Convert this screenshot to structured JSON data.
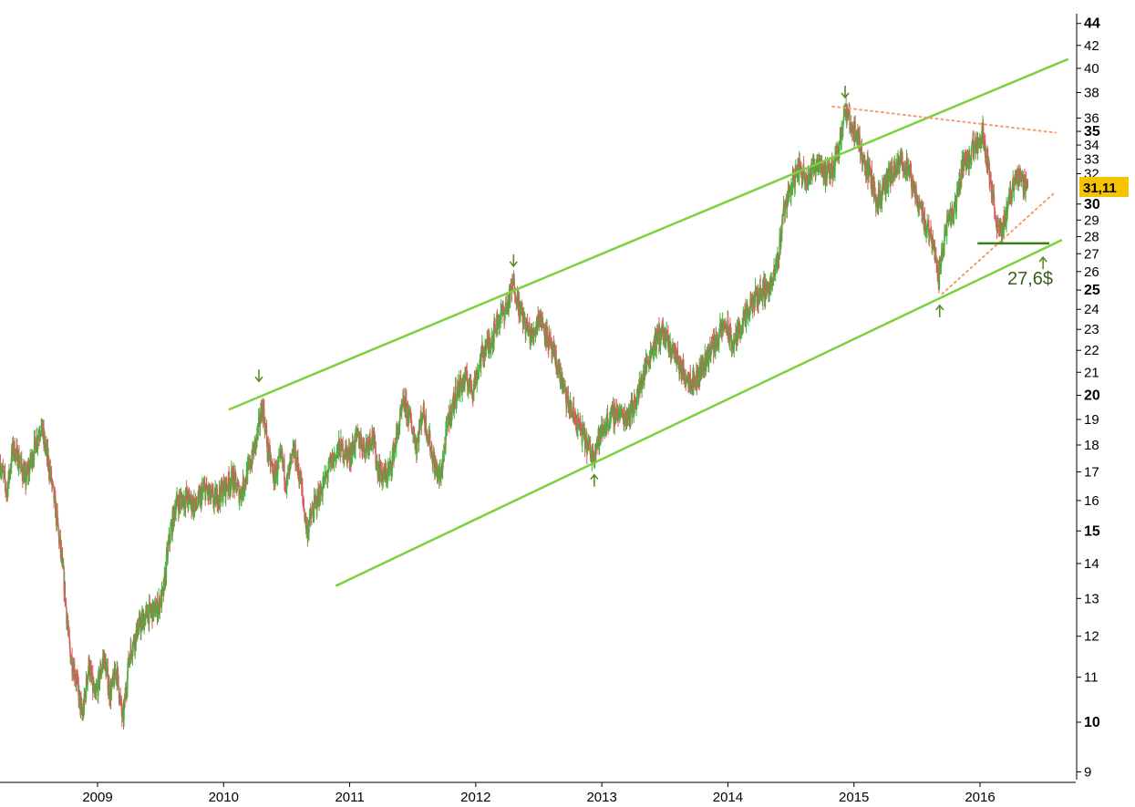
{
  "chart_data": {
    "type": "candlestick",
    "y_scale": "log",
    "ylim": [
      8.8,
      45
    ],
    "grid": false,
    "y_ticks": [
      {
        "value": 44,
        "label": "44",
        "major": true
      },
      {
        "value": 42,
        "label": "42",
        "major": false
      },
      {
        "value": 40,
        "label": "40",
        "major": false
      },
      {
        "value": 38,
        "label": "38",
        "major": false
      },
      {
        "value": 36,
        "label": "36",
        "major": false
      },
      {
        "value": 35,
        "label": "35",
        "major": true
      },
      {
        "value": 34,
        "label": "34",
        "major": false
      },
      {
        "value": 33,
        "label": "33",
        "major": false
      },
      {
        "value": 32,
        "label": "32",
        "major": false
      },
      {
        "value": 30,
        "label": "30",
        "major": true
      },
      {
        "value": 29,
        "label": "29",
        "major": false
      },
      {
        "value": 28,
        "label": "28",
        "major": false
      },
      {
        "value": 27,
        "label": "27",
        "major": false
      },
      {
        "value": 26,
        "label": "26",
        "major": false
      },
      {
        "value": 25,
        "label": "25",
        "major": true
      },
      {
        "value": 24,
        "label": "24",
        "major": false
      },
      {
        "value": 23,
        "label": "23",
        "major": false
      },
      {
        "value": 22,
        "label": "22",
        "major": false
      },
      {
        "value": 21,
        "label": "21",
        "major": false
      },
      {
        "value": 20,
        "label": "20",
        "major": true
      },
      {
        "value": 19,
        "label": "19",
        "major": false
      },
      {
        "value": 18,
        "label": "18",
        "major": false
      },
      {
        "value": 17,
        "label": "17",
        "major": false
      },
      {
        "value": 16,
        "label": "16",
        "major": false
      },
      {
        "value": 15,
        "label": "15",
        "major": true
      },
      {
        "value": 14,
        "label": "14",
        "major": false
      },
      {
        "value": 13,
        "label": "13",
        "major": false
      },
      {
        "value": 12,
        "label": "12",
        "major": false
      },
      {
        "value": 11,
        "label": "11",
        "major": false
      },
      {
        "value": 10,
        "label": "10",
        "major": true
      },
      {
        "value": 9,
        "label": "9",
        "major": false
      }
    ],
    "x_ticks": [
      {
        "value": 2009.0,
        "label": "2009"
      },
      {
        "value": 2010.0,
        "label": "2010"
      },
      {
        "value": 2011.0,
        "label": "2011"
      },
      {
        "value": 2012.0,
        "label": "2012"
      },
      {
        "value": 2013.0,
        "label": "2013"
      },
      {
        "value": 2014.0,
        "label": "2014"
      },
      {
        "value": 2015.0,
        "label": "2015"
      },
      {
        "value": 2016.0,
        "label": "2016"
      }
    ],
    "xlim": [
      2008.23,
      2017.02
    ],
    "last_price": {
      "value": 31.11,
      "label": "31,11"
    },
    "price_path": [
      [
        2008.23,
        17.3
      ],
      [
        2008.28,
        16.3
      ],
      [
        2008.33,
        17.9
      ],
      [
        2008.38,
        17.4
      ],
      [
        2008.43,
        16.7
      ],
      [
        2008.5,
        17.9
      ],
      [
        2008.55,
        18.8
      ],
      [
        2008.62,
        17.1
      ],
      [
        2008.68,
        15.3
      ],
      [
        2008.73,
        13.6
      ],
      [
        2008.78,
        11.6
      ],
      [
        2008.83,
        11.0
      ],
      [
        2008.88,
        10.1
      ],
      [
        2008.93,
        11.3
      ],
      [
        2008.98,
        10.5
      ],
      [
        2009.05,
        11.5
      ],
      [
        2009.1,
        10.6
      ],
      [
        2009.15,
        11.2
      ],
      [
        2009.2,
        10.0
      ],
      [
        2009.25,
        11.5
      ],
      [
        2009.32,
        12.2
      ],
      [
        2009.4,
        12.6
      ],
      [
        2009.47,
        12.7
      ],
      [
        2009.52,
        13.1
      ],
      [
        2009.56,
        14.5
      ],
      [
        2009.62,
        15.9
      ],
      [
        2009.7,
        16.1
      ],
      [
        2009.78,
        15.8
      ],
      [
        2009.85,
        16.4
      ],
      [
        2009.92,
        16.0
      ],
      [
        2010.0,
        16.4
      ],
      [
        2010.07,
        16.8
      ],
      [
        2010.13,
        16.2
      ],
      [
        2010.2,
        17.1
      ],
      [
        2010.26,
        18.2
      ],
      [
        2010.31,
        19.6
      ],
      [
        2010.35,
        17.8
      ],
      [
        2010.4,
        16.8
      ],
      [
        2010.46,
        17.5
      ],
      [
        2010.5,
        16.6
      ],
      [
        2010.56,
        17.8
      ],
      [
        2010.61,
        16.7
      ],
      [
        2010.66,
        15.0
      ],
      [
        2010.72,
        15.8
      ],
      [
        2010.78,
        16.4
      ],
      [
        2010.85,
        17.3
      ],
      [
        2010.92,
        17.9
      ],
      [
        2011.0,
        17.6
      ],
      [
        2011.06,
        18.3
      ],
      [
        2011.12,
        17.9
      ],
      [
        2011.18,
        18.4
      ],
      [
        2011.22,
        17.2
      ],
      [
        2011.27,
        16.8
      ],
      [
        2011.32,
        17.1
      ],
      [
        2011.38,
        18.5
      ],
      [
        2011.43,
        19.7
      ],
      [
        2011.48,
        19.0
      ],
      [
        2011.53,
        18.0
      ],
      [
        2011.58,
        19.4
      ],
      [
        2011.63,
        18.2
      ],
      [
        2011.68,
        17.1
      ],
      [
        2011.72,
        16.8
      ],
      [
        2011.78,
        18.9
      ],
      [
        2011.85,
        20.2
      ],
      [
        2011.92,
        20.7
      ],
      [
        2011.98,
        20.3
      ],
      [
        2012.05,
        21.8
      ],
      [
        2012.12,
        22.5
      ],
      [
        2012.18,
        23.5
      ],
      [
        2012.25,
        24.2
      ],
      [
        2012.3,
        25.4
      ],
      [
        2012.35,
        24.0
      ],
      [
        2012.4,
        23.1
      ],
      [
        2012.45,
        22.6
      ],
      [
        2012.5,
        23.7
      ],
      [
        2012.55,
        23.0
      ],
      [
        2012.6,
        22.0
      ],
      [
        2012.66,
        21.1
      ],
      [
        2012.72,
        19.8
      ],
      [
        2012.78,
        19.1
      ],
      [
        2012.85,
        18.4
      ],
      [
        2012.92,
        17.6
      ],
      [
        2012.98,
        18.3
      ],
      [
        2013.05,
        19.0
      ],
      [
        2013.12,
        19.3
      ],
      [
        2013.18,
        19.1
      ],
      [
        2013.25,
        19.5
      ],
      [
        2013.3,
        20.3
      ],
      [
        2013.35,
        21.3
      ],
      [
        2013.42,
        22.4
      ],
      [
        2013.48,
        22.9
      ],
      [
        2013.53,
        22.2
      ],
      [
        2013.58,
        21.9
      ],
      [
        2013.63,
        21.1
      ],
      [
        2013.68,
        20.8
      ],
      [
        2013.74,
        20.6
      ],
      [
        2013.8,
        21.3
      ],
      [
        2013.85,
        21.9
      ],
      [
        2013.92,
        22.6
      ],
      [
        2013.98,
        23.3
      ],
      [
        2014.04,
        22.2
      ],
      [
        2014.1,
        23.2
      ],
      [
        2014.15,
        23.6
      ],
      [
        2014.2,
        24.4
      ],
      [
        2014.26,
        24.9
      ],
      [
        2014.31,
        25.1
      ],
      [
        2014.35,
        25.3
      ],
      [
        2014.4,
        26.8
      ],
      [
        2014.44,
        29.6
      ],
      [
        2014.5,
        31.1
      ],
      [
        2014.56,
        32.4
      ],
      [
        2014.62,
        31.8
      ],
      [
        2014.67,
        32.2
      ],
      [
        2014.72,
        33.0
      ],
      [
        2014.78,
        31.8
      ],
      [
        2014.83,
        32.3
      ],
      [
        2014.88,
        34.0
      ],
      [
        2014.93,
        36.6
      ],
      [
        2014.98,
        35.4
      ],
      [
        2015.03,
        34.6
      ],
      [
        2015.08,
        32.8
      ],
      [
        2015.13,
        31.9
      ],
      [
        2015.18,
        30.2
      ],
      [
        2015.23,
        30.8
      ],
      [
        2015.28,
        31.8
      ],
      [
        2015.33,
        32.1
      ],
      [
        2015.38,
        32.9
      ],
      [
        2015.43,
        32.3
      ],
      [
        2015.47,
        30.9
      ],
      [
        2015.52,
        30.1
      ],
      [
        2015.56,
        28.9
      ],
      [
        2015.6,
        28.2
      ],
      [
        2015.64,
        27.6
      ],
      [
        2015.67,
        25.4
      ],
      [
        2015.7,
        27.4
      ],
      [
        2015.74,
        28.8
      ],
      [
        2015.8,
        29.6
      ],
      [
        2015.86,
        32.6
      ],
      [
        2015.92,
        33.2
      ],
      [
        2015.97,
        34.2
      ],
      [
        2016.02,
        34.9
      ],
      [
        2016.06,
        33.0
      ],
      [
        2016.09,
        31.0
      ],
      [
        2016.12,
        29.4
      ],
      [
        2016.15,
        28.1
      ],
      [
        2016.19,
        28.8
      ],
      [
        2016.23,
        30.3
      ],
      [
        2016.28,
        31.8
      ],
      [
        2016.33,
        31.6
      ],
      [
        2016.38,
        31.2
      ]
    ],
    "annotations": {
      "label": "27,6$",
      "support_level": 27.6,
      "channel_upper": [
        [
          2010.04,
          19.4
        ],
        [
          2016.7,
          40.8
        ]
      ],
      "channel_lower": [
        [
          2010.89,
          13.35
        ],
        [
          2016.65,
          27.8
        ]
      ],
      "dotted_resistance": [
        [
          2014.83,
          36.9
        ],
        [
          2016.6,
          34.9
        ]
      ],
      "dotted_support": [
        [
          2015.7,
          24.8
        ],
        [
          2016.6,
          30.8
        ]
      ],
      "support_line": [
        [
          2015.98,
          27.6
        ],
        [
          2016.55,
          27.6
        ]
      ],
      "down_arrows": [
        [
          2010.28,
          20.6
        ],
        [
          2012.3,
          26.3
        ],
        [
          2014.93,
          37.6
        ]
      ],
      "up_arrows": [
        [
          2012.94,
          16.9
        ],
        [
          2015.68,
          24.2
        ],
        [
          2016.5,
          26.8
        ]
      ]
    },
    "colors": {
      "up_candle": "#39b83a",
      "down_candle": "#d95b5b",
      "channel": "#7dd13c",
      "dotted": "#f0a070",
      "support": "#3a7d1a",
      "arrow": "#5a8a2a",
      "last_price_bg": "#f5c400"
    }
  }
}
